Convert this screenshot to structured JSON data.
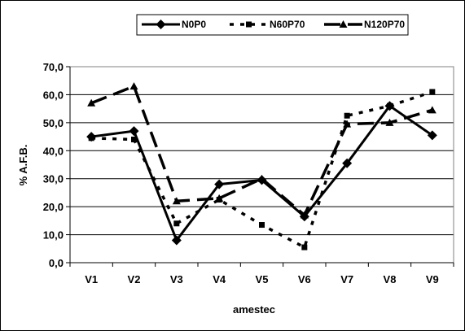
{
  "chart_data": {
    "type": "line",
    "categories": [
      "V1",
      "V2",
      "V3",
      "V4",
      "V5",
      "V6",
      "V7",
      "V8",
      "V9"
    ],
    "series": [
      {
        "name": "N0P0",
        "values": [
          45,
          47,
          8,
          28,
          29.5,
          16.5,
          35.5,
          56,
          45.5
        ]
      },
      {
        "name": "N60P70",
        "values": [
          44.5,
          44,
          14,
          22.5,
          13.5,
          5.5,
          52.5,
          56,
          61
        ]
      },
      {
        "name": "N120P70",
        "values": [
          57,
          63,
          22,
          23,
          30,
          17,
          49.5,
          50,
          54.5
        ]
      }
    ],
    "title": "",
    "xlabel": "amestec",
    "ylabel": "% A.F.B.",
    "ylim": [
      0,
      70
    ],
    "yticks": [
      "0,0",
      "10,0",
      "20,0",
      "30,0",
      "40,0",
      "50,0",
      "60,0",
      "70,0"
    ],
    "grid": "horizontal",
    "legend_position": "top"
  }
}
